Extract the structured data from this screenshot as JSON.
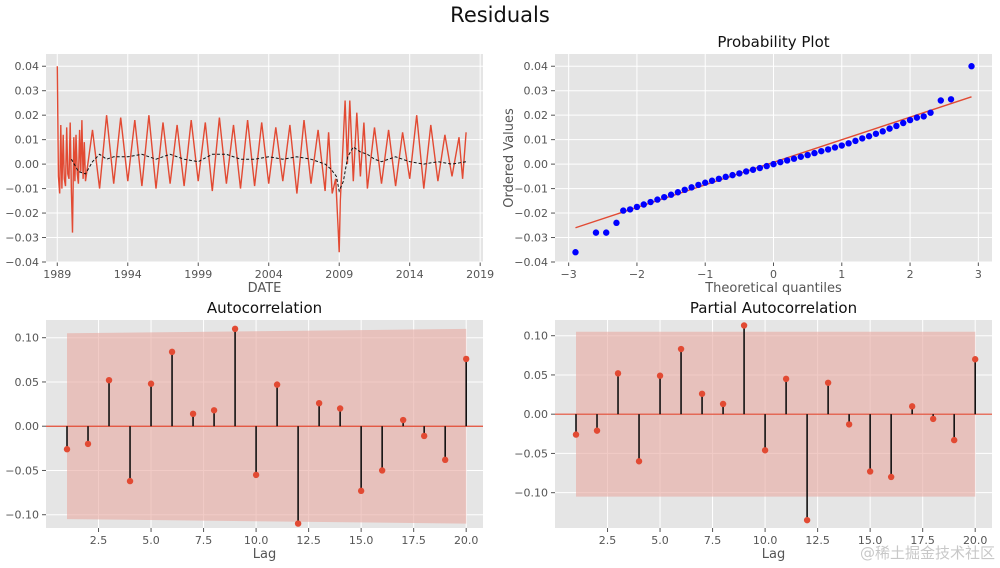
{
  "suptitle": "Residuals",
  "watermark": "@稀土掘金技术社区",
  "colors": {
    "panel_bg": "#e5e5e5",
    "grid": "#ffffff",
    "series_red": "#e24a33",
    "rolling_black": "#111111",
    "qq_points": "#0000ff",
    "band_fill": "#e8a8a0"
  },
  "chart_data": [
    {
      "id": "residuals_ts",
      "type": "line",
      "title": "",
      "xlabel": "DATE",
      "ylabel": "",
      "xlim": [
        1988.2,
        2019.2
      ],
      "ylim": [
        -0.04,
        0.045
      ],
      "xticks": [
        1989,
        1994,
        1999,
        2004,
        2009,
        2014,
        2019
      ],
      "xtick_labels": [
        "1989",
        "1994",
        "1999",
        "2004",
        "2009",
        "2014",
        "2019"
      ],
      "yticks": [
        -0.04,
        -0.03,
        -0.02,
        -0.01,
        0.0,
        0.01,
        0.02,
        0.03,
        0.04
      ],
      "ytick_labels": [
        "−0.04",
        "−0.03",
        "−0.02",
        "−0.01",
        "0.00",
        "0.01",
        "0.02",
        "0.03",
        "0.04"
      ],
      "grid": true,
      "series": [
        {
          "role": "residuals",
          "x": [
            1989.0,
            1989.08,
            1989.17,
            1989.25,
            1989.33,
            1989.42,
            1989.5,
            1989.58,
            1989.67,
            1989.75,
            1989.83,
            1989.92,
            1990.0,
            1990.08,
            1990.17,
            1990.25,
            1990.33,
            1990.42,
            1990.5,
            1990.58,
            1990.67,
            1990.75,
            1990.83,
            1990.92,
            1991.0,
            1991.5,
            1992.0,
            1992.5,
            1993.0,
            1993.5,
            1994.0,
            1994.5,
            1995.0,
            1995.5,
            1996.0,
            1996.5,
            1997.0,
            1997.5,
            1998.0,
            1998.5,
            1999.0,
            1999.5,
            2000.0,
            2000.5,
            2001.0,
            2001.5,
            2002.0,
            2002.5,
            2003.0,
            2003.5,
            2004.0,
            2004.5,
            2005.0,
            2005.5,
            2006.0,
            2006.5,
            2007.0,
            2007.5,
            2008.0,
            2008.25,
            2008.5,
            2008.75,
            2008.92,
            2009.0,
            2009.08,
            2009.25,
            2009.42,
            2009.58,
            2009.75,
            2010.0,
            2010.25,
            2010.5,
            2010.75,
            2011.0,
            2011.5,
            2012.0,
            2012.5,
            2013.0,
            2013.5,
            2014.0,
            2014.5,
            2015.0,
            2015.5,
            2016.0,
            2016.5,
            2017.0,
            2017.5,
            2017.75,
            2018.0
          ],
          "y": [
            0.04,
            -0.005,
            -0.012,
            0.016,
            -0.01,
            0.012,
            -0.006,
            -0.009,
            0.015,
            -0.004,
            -0.006,
            0.017,
            -0.011,
            -0.028,
            0.011,
            -0.007,
            0.012,
            -0.004,
            -0.008,
            0.014,
            -0.003,
            0.018,
            -0.006,
            0.009,
            -0.007,
            0.014,
            -0.01,
            0.02,
            -0.008,
            0.019,
            -0.007,
            0.018,
            -0.009,
            0.02,
            -0.01,
            0.017,
            -0.008,
            0.016,
            -0.009,
            0.018,
            -0.007,
            0.017,
            -0.011,
            0.019,
            -0.008,
            0.016,
            -0.01,
            0.018,
            -0.009,
            0.017,
            -0.008,
            0.015,
            -0.007,
            0.016,
            -0.012,
            0.018,
            -0.008,
            0.014,
            -0.011,
            0.013,
            -0.012,
            -0.006,
            -0.026,
            -0.036,
            -0.015,
            0.005,
            0.026,
            0.0,
            0.026,
            -0.007,
            0.021,
            -0.005,
            0.017,
            -0.01,
            0.015,
            -0.008,
            0.014,
            -0.009,
            0.013,
            -0.006,
            0.02,
            -0.01,
            0.016,
            -0.007,
            0.012,
            -0.005,
            0.011,
            -0.006,
            0.013
          ]
        },
        {
          "role": "rolling_mean",
          "style": "dashed",
          "x": [
            1990.0,
            1990.5,
            1991.0,
            1991.5,
            1992.0,
            1992.5,
            1993.0,
            1994.0,
            1995.0,
            1996.0,
            1997.0,
            1998.0,
            1999.0,
            2000.0,
            2001.0,
            2002.0,
            2003.0,
            2004.0,
            2005.0,
            2006.0,
            2007.0,
            2007.5,
            2008.0,
            2008.4,
            2008.8,
            2009.0,
            2009.3,
            2009.6,
            2010.0,
            2010.5,
            2011.0,
            2011.5,
            2012.0,
            2012.5,
            2013.0,
            2014.0,
            2015.0,
            2016.0,
            2017.0,
            2018.0
          ],
          "y": [
            0.002,
            -0.003,
            -0.004,
            0.001,
            0.004,
            0.002,
            0.003,
            0.003,
            0.004,
            0.002,
            0.004,
            0.002,
            0.001,
            0.004,
            0.004,
            0.002,
            0.002,
            0.003,
            0.002,
            0.003,
            0.002,
            0.001,
            0.0,
            -0.002,
            -0.005,
            -0.011,
            -0.007,
            0.003,
            0.007,
            0.005,
            0.004,
            0.002,
            0.001,
            0.002,
            0.003,
            0.001,
            0.0,
            0.001,
            0.0,
            0.001
          ]
        }
      ]
    },
    {
      "id": "probability_plot",
      "type": "scatter",
      "title": "Probability Plot",
      "xlabel": "Theoretical quantiles",
      "ylabel": "Ordered Values",
      "xlim": [
        -3.2,
        3.2
      ],
      "ylim": [
        -0.04,
        0.045
      ],
      "xticks": [
        -3,
        -2,
        -1,
        0,
        1,
        2,
        3
      ],
      "xtick_labels": [
        "−3",
        "−2",
        "−1",
        "0",
        "1",
        "2",
        "3"
      ],
      "yticks": [
        -0.04,
        -0.03,
        -0.02,
        -0.01,
        0.0,
        0.01,
        0.02,
        0.03,
        0.04
      ],
      "ytick_labels": [
        "−0.04",
        "−0.03",
        "−0.02",
        "−0.01",
        "0.00",
        "0.01",
        "0.02",
        "0.03",
        "0.04"
      ],
      "grid": true,
      "fit_line": {
        "x": [
          -2.9,
          2.9
        ],
        "y": [
          -0.026,
          0.0275
        ]
      },
      "points": {
        "x": [
          -2.9,
          -2.6,
          -2.45,
          -2.3,
          -2.2,
          -2.1,
          -2.0,
          -1.9,
          -1.8,
          -1.7,
          -1.6,
          -1.5,
          -1.4,
          -1.3,
          -1.2,
          -1.1,
          -1.0,
          -0.9,
          -0.8,
          -0.7,
          -0.6,
          -0.5,
          -0.4,
          -0.3,
          -0.2,
          -0.1,
          0.0,
          0.1,
          0.2,
          0.3,
          0.4,
          0.5,
          0.6,
          0.7,
          0.8,
          0.9,
          1.0,
          1.1,
          1.2,
          1.3,
          1.4,
          1.5,
          1.6,
          1.7,
          1.8,
          1.9,
          2.0,
          2.1,
          2.2,
          2.3,
          2.45,
          2.6,
          2.9
        ],
        "y": [
          -0.036,
          -0.028,
          -0.028,
          -0.024,
          -0.019,
          -0.0185,
          -0.0175,
          -0.0165,
          -0.0155,
          -0.0145,
          -0.0135,
          -0.0125,
          -0.0115,
          -0.0105,
          -0.0095,
          -0.0085,
          -0.0076,
          -0.0068,
          -0.006,
          -0.0052,
          -0.0045,
          -0.0038,
          -0.003,
          -0.0023,
          -0.0016,
          -0.0008,
          0.0,
          0.0008,
          0.0015,
          0.0022,
          0.003,
          0.0037,
          0.0045,
          0.0053,
          0.006,
          0.0068,
          0.0076,
          0.0085,
          0.0095,
          0.0105,
          0.0114,
          0.0124,
          0.0134,
          0.0145,
          0.0156,
          0.0168,
          0.018,
          0.019,
          0.0195,
          0.021,
          0.026,
          0.0265,
          0.04
        ]
      }
    },
    {
      "id": "autocorrelation",
      "type": "stem",
      "title": "Autocorrelation",
      "xlabel": "Lag",
      "ylabel": "",
      "xlim": [
        0,
        20.8
      ],
      "ylim": [
        -0.115,
        0.12
      ],
      "xticks": [
        2.5,
        5.0,
        7.5,
        10.0,
        12.5,
        15.0,
        17.5,
        20.0
      ],
      "xtick_labels": [
        "2.5",
        "5.0",
        "7.5",
        "10.0",
        "12.5",
        "15.0",
        "17.5",
        "20.0"
      ],
      "yticks": [
        -0.1,
        -0.05,
        0.0,
        0.05,
        0.1
      ],
      "ytick_labels": [
        "−0.10",
        "−0.05",
        "0.00",
        "0.05",
        "0.10"
      ],
      "grid": true,
      "band": {
        "x": [
          1,
          20
        ],
        "upper": [
          0.105,
          0.11
        ],
        "lower": [
          -0.105,
          -0.11
        ]
      },
      "lags": [
        1,
        2,
        3,
        4,
        5,
        6,
        7,
        8,
        9,
        10,
        11,
        12,
        13,
        14,
        15,
        16,
        17,
        18,
        19,
        20
      ],
      "values": [
        -0.026,
        -0.02,
        0.052,
        -0.062,
        0.048,
        0.084,
        0.014,
        0.018,
        0.11,
        -0.055,
        0.047,
        -0.11,
        0.026,
        0.02,
        -0.073,
        -0.05,
        0.007,
        -0.011,
        -0.038,
        0.076
      ]
    },
    {
      "id": "partial_autocorrelation",
      "type": "stem",
      "title": "Partial Autocorrelation",
      "xlabel": "Lag",
      "ylabel": "",
      "xlim": [
        0,
        20.8
      ],
      "ylim": [
        -0.145,
        0.12
      ],
      "xticks": [
        2.5,
        5.0,
        7.5,
        10.0,
        12.5,
        15.0,
        17.5,
        20.0
      ],
      "xtick_labels": [
        "2.5",
        "5.0",
        "7.5",
        "10.0",
        "12.5",
        "15.0",
        "17.5",
        "20.0"
      ],
      "yticks": [
        -0.1,
        -0.05,
        0.0,
        0.05,
        0.1
      ],
      "ytick_labels": [
        "−0.10",
        "−0.05",
        "0.00",
        "0.05",
        "0.10"
      ],
      "grid": true,
      "band": {
        "x": [
          1,
          20
        ],
        "upper": [
          0.105,
          0.105
        ],
        "lower": [
          -0.105,
          -0.105
        ]
      },
      "lags": [
        1,
        2,
        3,
        4,
        5,
        6,
        7,
        8,
        9,
        10,
        11,
        12,
        13,
        14,
        15,
        16,
        17,
        18,
        19,
        20
      ],
      "values": [
        -0.026,
        -0.021,
        0.052,
        -0.06,
        0.049,
        0.083,
        0.026,
        0.013,
        0.113,
        -0.046,
        0.045,
        -0.135,
        0.04,
        -0.013,
        -0.073,
        -0.08,
        0.01,
        -0.006,
        -0.033,
        0.07
      ]
    }
  ]
}
